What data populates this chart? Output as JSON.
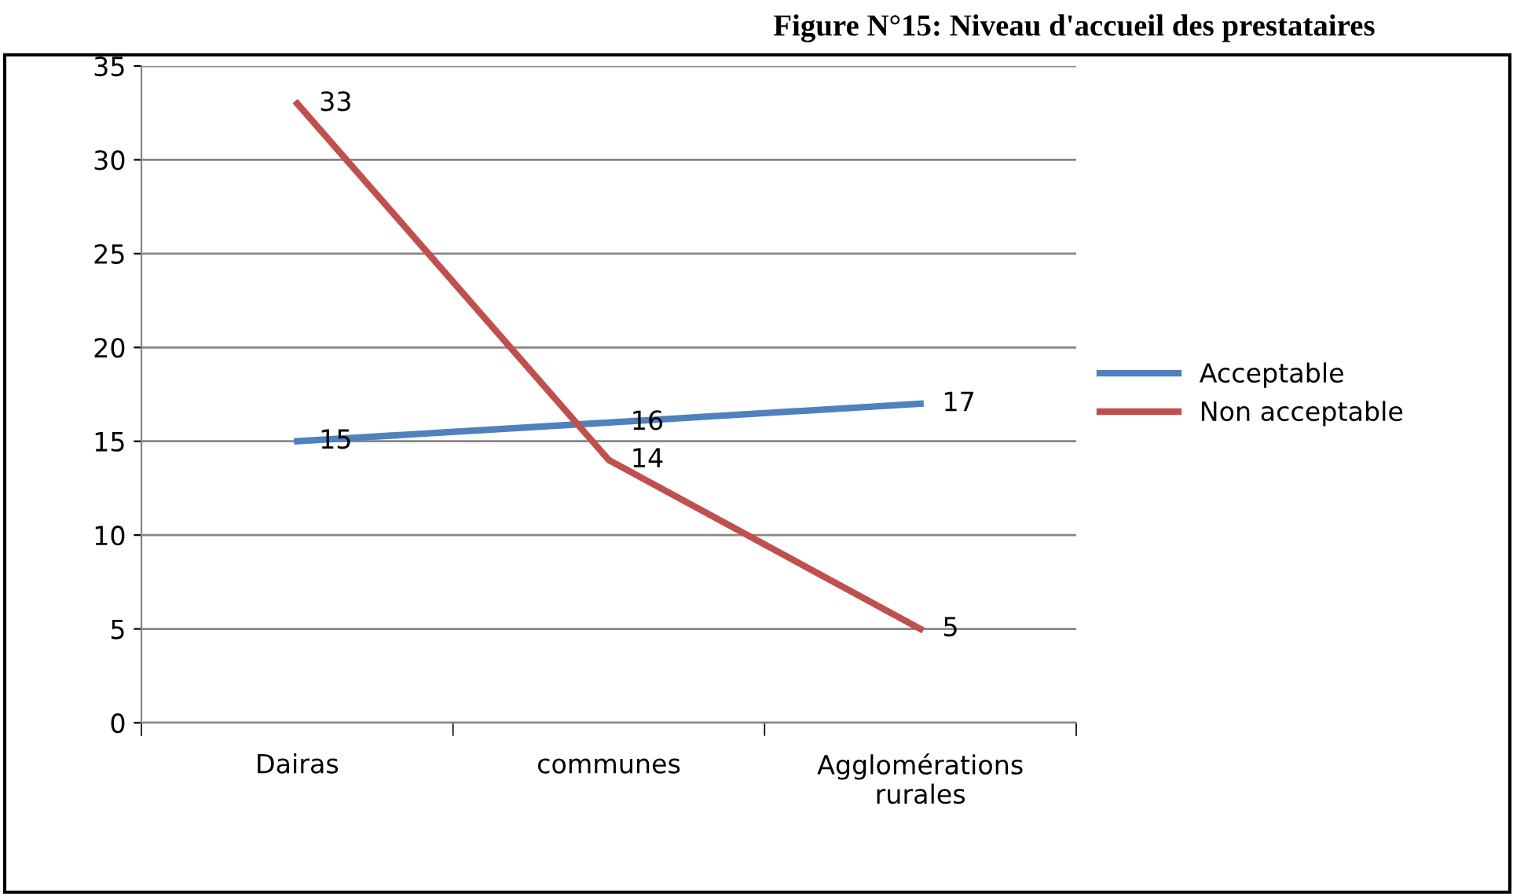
{
  "chart_data": {
    "type": "line",
    "title": "Figure N°15: Niveau d'accueil des prestataires",
    "categories": [
      "Dairas",
      "communes",
      "Agglomérations\nrurales"
    ],
    "series": [
      {
        "name": "Acceptable",
        "color": "#4f81bd",
        "values": [
          15,
          16,
          17
        ]
      },
      {
        "name": "Non acceptable",
        "color": "#c0504d",
        "values": [
          33,
          14,
          5
        ]
      }
    ],
    "ylim": [
      0,
      35
    ],
    "yticks": [
      0,
      5,
      10,
      15,
      20,
      25,
      30,
      35
    ],
    "grid": "y",
    "legend": "right",
    "data_labels": true,
    "marker": "none",
    "line_style": "solid"
  }
}
